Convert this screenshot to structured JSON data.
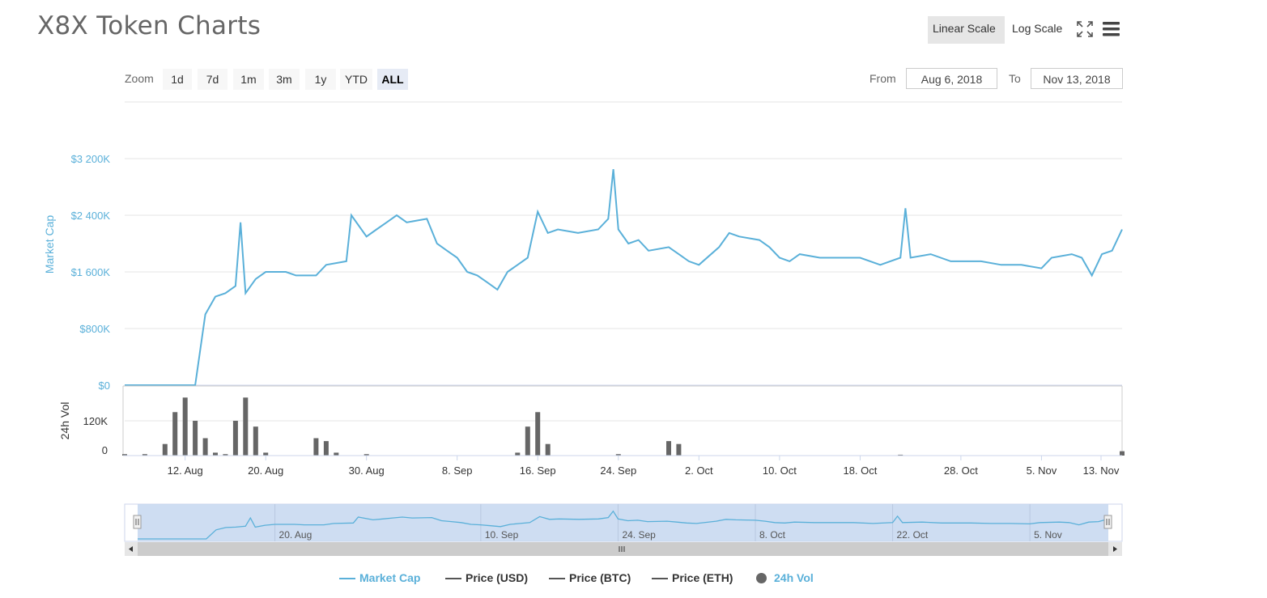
{
  "title": "X8X Token Charts",
  "scale": {
    "linear": "Linear Scale",
    "log": "Log Scale",
    "active": "linear"
  },
  "icons": {
    "fullscreen": "fullscreen-icon",
    "menu": "hamburger-menu-icon"
  },
  "zoom": {
    "label": "Zoom",
    "options": [
      "1d",
      "7d",
      "1m",
      "3m",
      "1y",
      "YTD",
      "ALL"
    ],
    "selected": "ALL"
  },
  "range": {
    "from_label": "From",
    "from_value": "Aug 6, 2018",
    "to_label": "To",
    "to_value": "Nov 13, 2018"
  },
  "colors": {
    "market_cap": "#5ab0d9",
    "volume": "#666666",
    "navigator_mask": "#c6d7f0"
  },
  "chart_data": {
    "type": "line",
    "y_axis_market_cap": {
      "label": "Market Cap",
      "ticks": [
        "$0",
        "$800K",
        "$1 600K",
        "$2 400K",
        "$3 200K"
      ],
      "ylim": [
        0,
        3200000
      ]
    },
    "y_axis_volume": {
      "label": "24h Vol",
      "ticks": [
        "0",
        "120K"
      ],
      "ylim": [
        0,
        240000
      ]
    },
    "x_ticks": [
      "12. Aug",
      "20. Aug",
      "30. Aug",
      "8. Sep",
      "16. Sep",
      "24. Sep",
      "2. Oct",
      "10. Oct",
      "18. Oct",
      "28. Oct",
      "5. Nov",
      "13. Nov"
    ],
    "navigator_ticks": [
      "20. Aug",
      "10. Sep",
      "24. Sep",
      "8. Oct",
      "22. Oct",
      "5. Nov"
    ],
    "series": [
      {
        "name": "Market Cap",
        "x": [
          "2018-08-06",
          "2018-08-13",
          "2018-08-14",
          "2018-08-15",
          "2018-08-16",
          "2018-08-17",
          "2018-08-17T12",
          "2018-08-18",
          "2018-08-19",
          "2018-08-20",
          "2018-08-22",
          "2018-08-23",
          "2018-08-25",
          "2018-08-26",
          "2018-08-28",
          "2018-08-28T12",
          "2018-08-30",
          "2018-08-31",
          "2018-09-01",
          "2018-09-02",
          "2018-09-03",
          "2018-09-05",
          "2018-09-06",
          "2018-09-07",
          "2018-09-08",
          "2018-09-09",
          "2018-09-10",
          "2018-09-11",
          "2018-09-12",
          "2018-09-13",
          "2018-09-14",
          "2018-09-15",
          "2018-09-16",
          "2018-09-17",
          "2018-09-18",
          "2018-09-20",
          "2018-09-22",
          "2018-09-23",
          "2018-09-23T12",
          "2018-09-24",
          "2018-09-25",
          "2018-09-26",
          "2018-09-27",
          "2018-09-29",
          "2018-09-30",
          "2018-10-01",
          "2018-10-02",
          "2018-10-04",
          "2018-10-05",
          "2018-10-06",
          "2018-10-08",
          "2018-10-09",
          "2018-10-10",
          "2018-10-11",
          "2018-10-12",
          "2018-10-14",
          "2018-10-16",
          "2018-10-18",
          "2018-10-20",
          "2018-10-22",
          "2018-10-22T12",
          "2018-10-23",
          "2018-10-25",
          "2018-10-27",
          "2018-10-30",
          "2018-11-01",
          "2018-11-03",
          "2018-11-05",
          "2018-11-06",
          "2018-11-08",
          "2018-11-09",
          "2018-11-10",
          "2018-11-11",
          "2018-11-12",
          "2018-11-13"
        ],
        "values": [
          0,
          0,
          1000000,
          1250000,
          1300000,
          1400000,
          2300000,
          1300000,
          1500000,
          1600000,
          1600000,
          1550000,
          1550000,
          1700000,
          1750000,
          2400000,
          2100000,
          2200000,
          2300000,
          2400000,
          2300000,
          2350000,
          2000000,
          1900000,
          1800000,
          1600000,
          1550000,
          1450000,
          1350000,
          1600000,
          1700000,
          1800000,
          2450000,
          2150000,
          2200000,
          2150000,
          2200000,
          2350000,
          3050000,
          2200000,
          2000000,
          2050000,
          1900000,
          1950000,
          1850000,
          1750000,
          1700000,
          1950000,
          2150000,
          2100000,
          2050000,
          1950000,
          1800000,
          1750000,
          1850000,
          1800000,
          1800000,
          1800000,
          1700000,
          1800000,
          2500000,
          1800000,
          1850000,
          1750000,
          1750000,
          1700000,
          1700000,
          1650000,
          1800000,
          1850000,
          1800000,
          1550000,
          1850000,
          1900000,
          2200000
        ]
      },
      {
        "name": "24h Vol",
        "x": [
          "2018-08-06",
          "2018-08-08",
          "2018-08-10",
          "2018-08-11",
          "2018-08-12",
          "2018-08-13",
          "2018-08-14",
          "2018-08-15",
          "2018-08-16",
          "2018-08-17",
          "2018-08-18",
          "2018-08-19",
          "2018-08-20",
          "2018-08-25",
          "2018-08-26",
          "2018-08-27",
          "2018-08-30",
          "2018-09-14",
          "2018-09-15",
          "2018-09-16",
          "2018-09-17",
          "2018-09-24",
          "2018-09-29",
          "2018-09-30",
          "2018-10-22",
          "2018-11-13"
        ],
        "values": [
          5000,
          5000,
          40000,
          150000,
          200000,
          120000,
          60000,
          10000,
          5000,
          120000,
          200000,
          100000,
          10000,
          60000,
          50000,
          10000,
          5000,
          10000,
          100000,
          150000,
          40000,
          5000,
          50000,
          40000,
          3000,
          15000
        ]
      }
    ],
    "legend": [
      "Market Cap",
      "Price (USD)",
      "Price (BTC)",
      "Price (ETH)",
      "24h Vol"
    ],
    "legend_placement": "bottom-center",
    "grid": true
  }
}
